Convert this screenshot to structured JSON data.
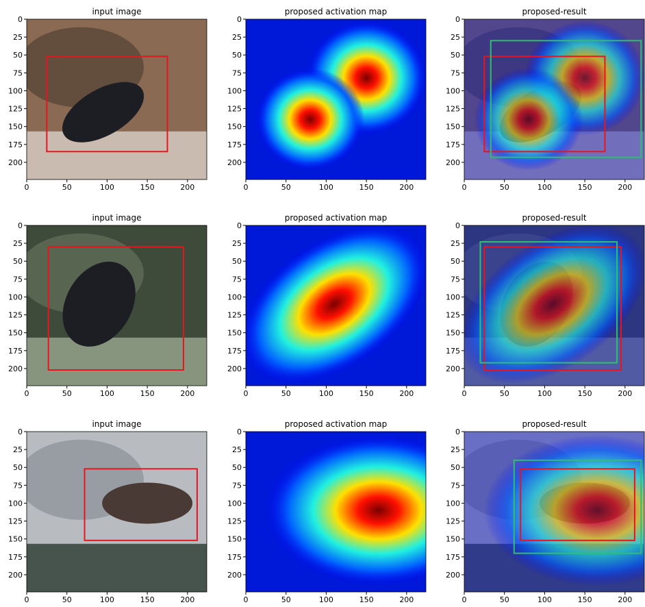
{
  "chart_data": [
    {
      "type": "image",
      "title": "input image",
      "xlim": [
        0,
        224
      ],
      "ylim": [
        224,
        0
      ],
      "xticks": [
        0,
        50,
        100,
        150,
        200
      ],
      "yticks": [
        0,
        25,
        50,
        75,
        100,
        125,
        150,
        175,
        200
      ],
      "boxes": [
        {
          "color": "#e8141e",
          "x": [
            25,
            175
          ],
          "y": [
            52,
            185
          ]
        }
      ]
    },
    {
      "type": "image",
      "title": "proposed activation map",
      "xlim": [
        0,
        224
      ],
      "ylim": [
        224,
        0
      ],
      "xticks": [
        0,
        50,
        100,
        150,
        200
      ],
      "yticks": [
        0,
        25,
        50,
        75,
        100,
        125,
        150,
        175,
        200
      ],
      "boxes": []
    },
    {
      "type": "image",
      "title": "proposed-result",
      "xlim": [
        0,
        224
      ],
      "ylim": [
        224,
        0
      ],
      "xticks": [
        0,
        50,
        100,
        150,
        200
      ],
      "yticks": [
        0,
        25,
        50,
        75,
        100,
        125,
        150,
        175,
        200
      ],
      "boxes": [
        {
          "color": "#e8141e",
          "x": [
            25,
            175
          ],
          "y": [
            52,
            185
          ]
        },
        {
          "color": "#2fbf71",
          "x": [
            33,
            220
          ],
          "y": [
            30,
            193
          ]
        }
      ]
    },
    {
      "type": "image",
      "title": "input image",
      "xlim": [
        0,
        224
      ],
      "ylim": [
        224,
        0
      ],
      "xticks": [
        0,
        50,
        100,
        150,
        200
      ],
      "yticks": [
        0,
        25,
        50,
        75,
        100,
        125,
        150,
        175,
        200
      ],
      "boxes": [
        {
          "color": "#e8141e",
          "x": [
            27,
            195
          ],
          "y": [
            30,
            202
          ]
        }
      ]
    },
    {
      "type": "image",
      "title": "proposed activation map",
      "xlim": [
        0,
        224
      ],
      "ylim": [
        224,
        0
      ],
      "xticks": [
        0,
        50,
        100,
        150,
        200
      ],
      "yticks": [
        0,
        25,
        50,
        75,
        100,
        125,
        150,
        175,
        200
      ],
      "boxes": []
    },
    {
      "type": "image",
      "title": "proposed-result",
      "xlim": [
        0,
        224
      ],
      "ylim": [
        224,
        0
      ],
      "xticks": [
        0,
        50,
        100,
        150,
        200
      ],
      "yticks": [
        0,
        25,
        50,
        75,
        100,
        125,
        150,
        175,
        200
      ],
      "boxes": [
        {
          "color": "#e8141e",
          "x": [
            25,
            195
          ],
          "y": [
            30,
            202
          ]
        },
        {
          "color": "#2fbf71",
          "x": [
            20,
            190
          ],
          "y": [
            23,
            192
          ]
        }
      ]
    },
    {
      "type": "image",
      "title": "input image",
      "xlim": [
        0,
        224
      ],
      "ylim": [
        224,
        0
      ],
      "xticks": [
        0,
        50,
        100,
        150,
        200
      ],
      "yticks": [
        0,
        25,
        50,
        75,
        100,
        125,
        150,
        175,
        200
      ],
      "boxes": [
        {
          "color": "#e8141e",
          "x": [
            72,
            212
          ],
          "y": [
            52,
            152
          ]
        }
      ]
    },
    {
      "type": "image",
      "title": "proposed activation map",
      "xlim": [
        0,
        224
      ],
      "ylim": [
        224,
        0
      ],
      "xticks": [
        0,
        50,
        100,
        150,
        200
      ],
      "yticks": [
        0,
        25,
        50,
        75,
        100,
        125,
        150,
        175,
        200
      ],
      "boxes": []
    },
    {
      "type": "image",
      "title": "proposed-result",
      "xlim": [
        0,
        224
      ],
      "ylim": [
        224,
        0
      ],
      "xticks": [
        0,
        50,
        100,
        150,
        200
      ],
      "yticks": [
        0,
        25,
        50,
        75,
        100,
        125,
        150,
        175,
        200
      ],
      "boxes": [
        {
          "color": "#e8141e",
          "x": [
            70,
            212
          ],
          "y": [
            52,
            152
          ]
        },
        {
          "color": "#2fbf71",
          "x": [
            62,
            220
          ],
          "y": [
            40,
            170
          ]
        }
      ]
    }
  ]
}
